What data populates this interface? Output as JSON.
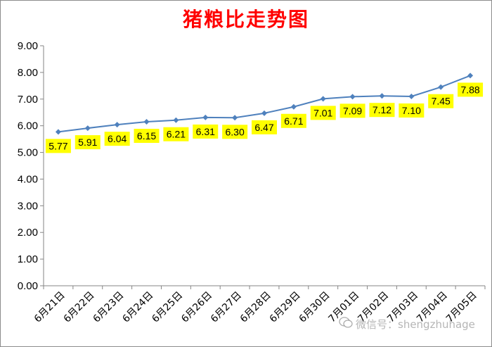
{
  "chart_data": {
    "type": "line",
    "title": "猪粮比走势图",
    "categories": [
      "6月21日",
      "6月22日",
      "6月23日",
      "6月24日",
      "6月25日",
      "6月26日",
      "6月27日",
      "6月28日",
      "6月29日",
      "6月30日",
      "7月01日",
      "7月02日",
      "7月03日",
      "7月04日",
      "7月05日"
    ],
    "values": [
      5.77,
      5.91,
      6.04,
      6.15,
      6.21,
      6.31,
      6.3,
      6.47,
      6.71,
      7.01,
      7.09,
      7.12,
      7.1,
      7.45,
      7.88
    ],
    "data_labels": [
      "5.77",
      "5.91",
      "6.04",
      "6.15",
      "6.21",
      "6.31",
      "6.30",
      "6.47",
      "6.71",
      "7.01",
      "7.09",
      "7.12",
      "7.10",
      "7.45",
      "7.88"
    ],
    "y_ticks": [
      "0.00",
      "1.00",
      "2.00",
      "3.00",
      "4.00",
      "5.00",
      "6.00",
      "7.00",
      "8.00",
      "9.00"
    ],
    "ylim": [
      0,
      9
    ],
    "xlabel": "",
    "ylabel": "",
    "grid": false,
    "legend": "none",
    "colors": {
      "line": "#4f81bd",
      "label_bg": "#ffff00",
      "title": "#ff0000"
    }
  },
  "watermark": {
    "icon": "wechat-icon",
    "text": "微信号：shengzhuhage"
  }
}
